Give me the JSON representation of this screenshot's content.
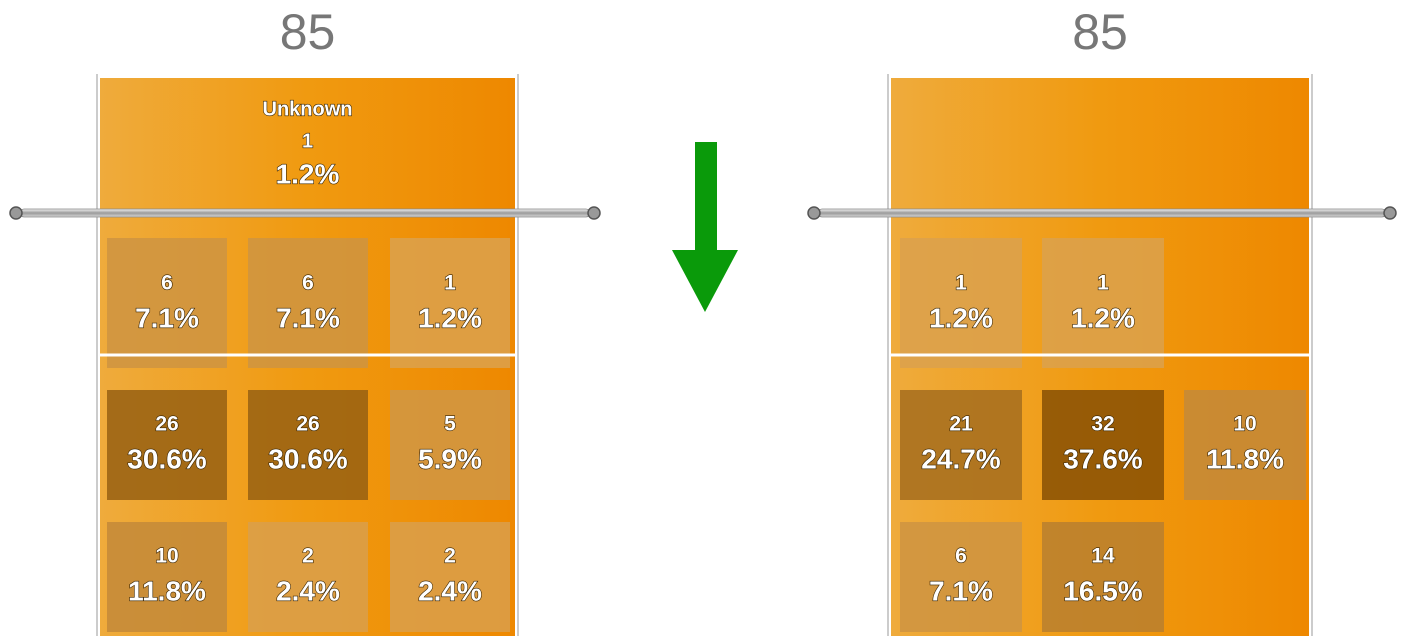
{
  "panels": [
    {
      "total": "85",
      "top": [
        "Unknown",
        "1",
        "1.2%"
      ],
      "rows": [
        [
          {
            "count": "6",
            "percent": "7.1%"
          },
          {
            "count": "6",
            "percent": "7.1%"
          },
          {
            "count": "1",
            "percent": "1.2%"
          }
        ],
        [
          {
            "count": "26",
            "percent": "30.6%"
          },
          {
            "count": "26",
            "percent": "30.6%"
          },
          {
            "count": "5",
            "percent": "5.9%"
          }
        ],
        [
          {
            "count": "10",
            "percent": "11.8%"
          },
          {
            "count": "2",
            "percent": "2.4%"
          },
          {
            "count": "2",
            "percent": "2.4%"
          }
        ]
      ]
    },
    {
      "total": "85",
      "rows": [
        [
          {
            "count": "1",
            "percent": "1.2%"
          },
          {
            "count": "1",
            "percent": "1.2%"
          },
          null
        ],
        [
          {
            "count": "21",
            "percent": "24.7%"
          },
          {
            "count": "32",
            "percent": "37.6%"
          },
          {
            "count": "10",
            "percent": "11.8%"
          }
        ],
        [
          {
            "count": "6",
            "percent": "7.1%"
          },
          {
            "count": "14",
            "percent": "16.5%"
          },
          null
        ]
      ]
    }
  ]
}
